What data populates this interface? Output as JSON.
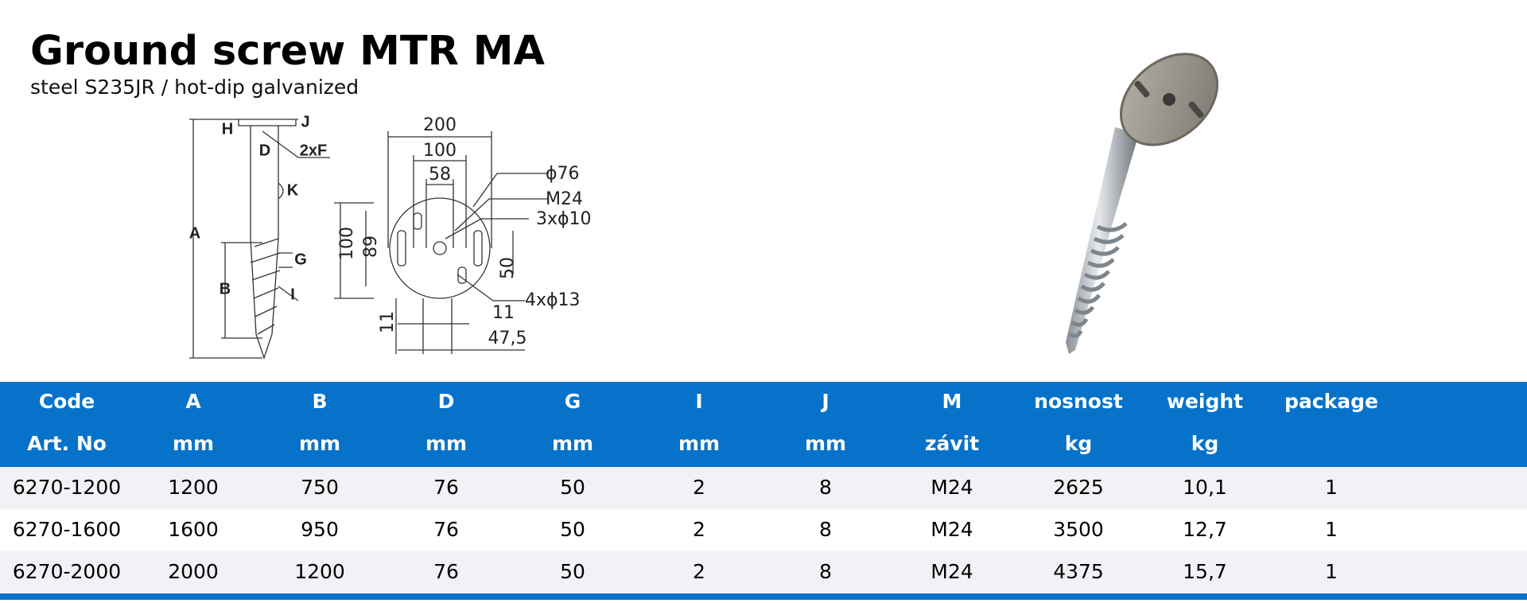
{
  "header": {
    "title": "Ground screw MTR MA",
    "subtitle": "steel S235JR / hot-dip galvanized"
  },
  "side_drawing": {
    "labels": [
      "H",
      "J",
      "D",
      "2xF",
      "K",
      "A",
      "G",
      "B",
      "I"
    ]
  },
  "top_drawing": {
    "labels": [
      "200",
      "100",
      "58",
      "ϕ76",
      "M24",
      "3xϕ10",
      "100",
      "89",
      "50",
      "4xϕ13",
      "11",
      "11",
      "47,5"
    ]
  },
  "table": {
    "header": [
      [
        "Code",
        "A",
        "B",
        "D",
        "G",
        "I",
        "J",
        "M",
        "nosnost",
        "weight",
        "package"
      ],
      [
        "Art. No",
        "mm",
        "mm",
        "mm",
        "mm",
        "mm",
        "mm",
        "závit",
        "kg",
        "kg"
      ]
    ],
    "rows": [
      [
        "6270-1200",
        "1200",
        "750",
        "76",
        "50",
        "2",
        "8",
        "M24",
        "2625",
        "10,1",
        "1"
      ],
      [
        "6270-1600",
        "1600",
        "950",
        "76",
        "50",
        "2",
        "8",
        "M24",
        "3500",
        "12,7",
        "1"
      ],
      [
        "6270-2000",
        "2000",
        "1200",
        "76",
        "50",
        "2",
        "8",
        "M24",
        "4375",
        "15,7",
        "1"
      ]
    ]
  }
}
